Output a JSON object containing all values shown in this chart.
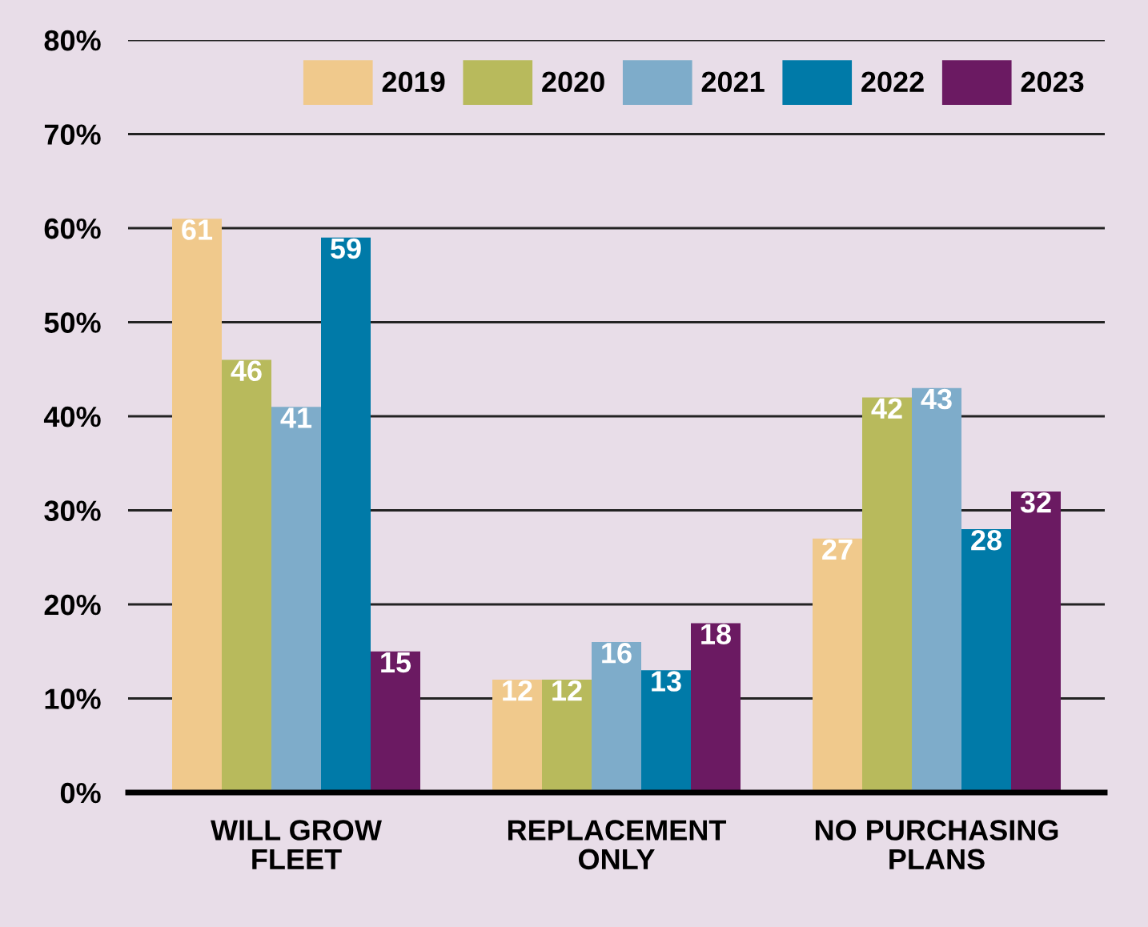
{
  "chart_data": {
    "type": "bar",
    "categories": [
      "WILL GROW\nFLEET",
      "REPLACEMENT\nONLY",
      "NO PURCHASING\nPLANS"
    ],
    "series": [
      {
        "name": "2019",
        "color": "#f0c98c",
        "values": [
          61,
          12,
          27
        ]
      },
      {
        "name": "2020",
        "color": "#b8ba5c",
        "values": [
          46,
          12,
          42
        ]
      },
      {
        "name": "2021",
        "color": "#7eacca",
        "values": [
          41,
          16,
          43
        ]
      },
      {
        "name": "2022",
        "color": "#007aa8",
        "values": [
          59,
          13,
          28
        ]
      },
      {
        "name": "2023",
        "color": "#6b1a62",
        "values": [
          15,
          18,
          32
        ]
      }
    ],
    "ylim": [
      0,
      80
    ],
    "yticks": [
      {
        "value": 0,
        "label": "0%"
      },
      {
        "value": 10,
        "label": "10%"
      },
      {
        "value": 20,
        "label": "20%"
      },
      {
        "value": 30,
        "label": "30%"
      },
      {
        "value": 40,
        "label": "40%"
      },
      {
        "value": 50,
        "label": "50%"
      },
      {
        "value": 60,
        "label": "60%"
      },
      {
        "value": 70,
        "label": "70%"
      },
      {
        "value": 80,
        "label": "80%"
      }
    ],
    "grid": "y",
    "legend": "top right",
    "data_labels": true
  }
}
